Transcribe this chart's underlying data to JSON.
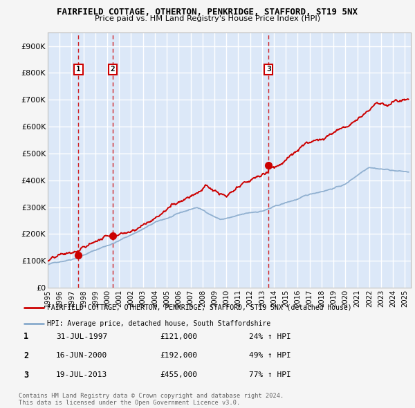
{
  "title": "FAIRFIELD COTTAGE, OTHERTON, PENKRIDGE, STAFFORD, ST19 5NX",
  "subtitle": "Price paid vs. HM Land Registry's House Price Index (HPI)",
  "xlim_start": 1995.0,
  "xlim_end": 2025.5,
  "ylim": [
    0,
    950000
  ],
  "yticks": [
    0,
    100000,
    200000,
    300000,
    400000,
    500000,
    600000,
    700000,
    800000,
    900000
  ],
  "ytick_labels": [
    "£0",
    "£100K",
    "£200K",
    "£300K",
    "£400K",
    "£500K",
    "£600K",
    "£700K",
    "£800K",
    "£900K"
  ],
  "background_color": "#f5f5f5",
  "plot_bg_color": "#dce8f8",
  "grid_color": "#ffffff",
  "sale_dates": [
    1997.58,
    2000.46,
    2013.55
  ],
  "sale_prices": [
    121000,
    192000,
    455000
  ],
  "sale_labels": [
    "1",
    "2",
    "3"
  ],
  "red_line_color": "#cc0000",
  "blue_line_color": "#88aacc",
  "legend_red_label": "FAIRFIELD COTTAGE, OTHERTON, PENKRIDGE, STAFFORD, ST19 5NX (detached house)",
  "legend_blue_label": "HPI: Average price, detached house, South Staffordshire",
  "table_rows": [
    [
      "1",
      "31-JUL-1997",
      "£121,000",
      "24% ↑ HPI"
    ],
    [
      "2",
      "16-JUN-2000",
      "£192,000",
      "49% ↑ HPI"
    ],
    [
      "3",
      "19-JUL-2013",
      "£455,000",
      "77% ↑ HPI"
    ]
  ],
  "footer": "Contains HM Land Registry data © Crown copyright and database right 2024.\nThis data is licensed under the Open Government Licence v3.0.",
  "xticks": [
    1995,
    1996,
    1997,
    1998,
    1999,
    2000,
    2001,
    2002,
    2003,
    2004,
    2005,
    2006,
    2007,
    2008,
    2009,
    2010,
    2011,
    2012,
    2013,
    2014,
    2015,
    2016,
    2017,
    2018,
    2019,
    2020,
    2021,
    2022,
    2023,
    2024,
    2025
  ]
}
